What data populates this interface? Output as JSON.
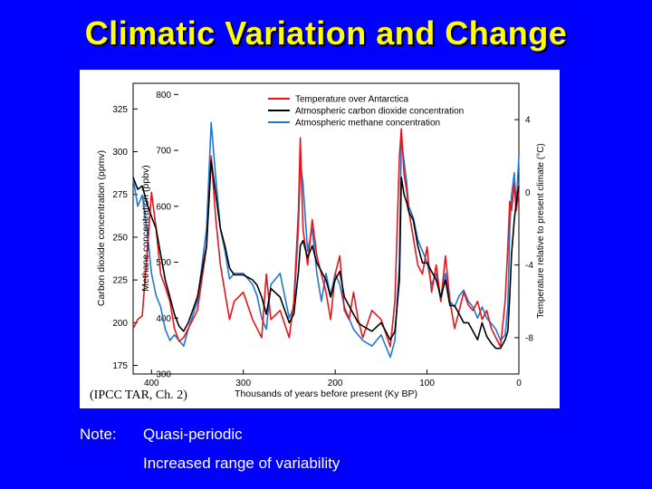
{
  "slide": {
    "title": "Climatic Variation and Change",
    "source": "(IPCC TAR, Ch. 2)",
    "note_label": "Note:",
    "note_lines": [
      "Quasi-periodic",
      "Increased range of variability"
    ]
  },
  "colors": {
    "background": "#0000ff",
    "title": "#ffff00",
    "temperature": "#e8141c",
    "co2": "#000000",
    "methane": "#1f78d1"
  },
  "chart_data": {
    "type": "line",
    "title": "",
    "xlabel": "Thousands of years before present (Ky BP)",
    "x_ticks": [
      400,
      300,
      200,
      100,
      0
    ],
    "xlim": [
      420,
      0
    ],
    "axes": {
      "co2": {
        "label": "Carbon dioxide concentration (ppmv)",
        "ticks": [
          175,
          200,
          225,
          250,
          275,
          300,
          325
        ],
        "lim": [
          170,
          340
        ]
      },
      "methane": {
        "label": "Methane concentration (ppbv)",
        "ticks": [
          300,
          400,
          500,
          600,
          700,
          800
        ],
        "lim": [
          300,
          820
        ]
      },
      "temperature": {
        "label": "Temperature relative to present climate (°C)",
        "ticks": [
          4,
          0,
          -4,
          -8
        ],
        "tick_labels": [
          "4",
          "0",
          "-4",
          "-8"
        ],
        "lim": [
          -10,
          6
        ]
      }
    },
    "legend": {
      "placement": "top-right",
      "entries": [
        "Temperature over Antarctica",
        "Atmospheric carbon dioxide concentration",
        "Atmospheric methane concentration"
      ]
    },
    "series": [
      {
        "name": "Temperature over Antarctica",
        "axis": "temperature",
        "x": [
          420,
          415,
          410,
          405,
          400,
          395,
          390,
          385,
          380,
          375,
          370,
          365,
          360,
          350,
          340,
          335,
          330,
          325,
          320,
          315,
          310,
          300,
          290,
          285,
          280,
          275,
          270,
          260,
          250,
          245,
          240,
          238,
          235,
          230,
          225,
          220,
          215,
          210,
          205,
          200,
          195,
          190,
          185,
          180,
          175,
          170,
          160,
          150,
          140,
          135,
          130,
          128,
          125,
          122,
          120,
          115,
          110,
          105,
          100,
          95,
          90,
          85,
          80,
          75,
          70,
          65,
          60,
          55,
          50,
          45,
          40,
          35,
          30,
          25,
          20,
          15,
          12,
          10,
          8,
          5,
          3,
          0
        ],
        "values": [
          -7.5,
          -7,
          -6.8,
          -3.5,
          0,
          -2,
          -4.5,
          -5.2,
          -6,
          -7.5,
          -8.2,
          -8,
          -7.5,
          -6.5,
          -3,
          2,
          -1.5,
          -4,
          -5.5,
          -7,
          -6,
          -5.5,
          -7,
          -7.5,
          -8,
          -4.5,
          -7,
          -6.5,
          -8,
          -6,
          -1,
          3,
          -2,
          -4,
          -1.5,
          -3.5,
          -4.5,
          -5.5,
          -7,
          -4.5,
          -3.5,
          -6.5,
          -7,
          -5.5,
          -7,
          -8,
          -6.5,
          -7,
          -8.5,
          -6,
          2,
          3.5,
          1,
          0,
          -1,
          -2.5,
          -4,
          -4.5,
          -3,
          -5.5,
          -4,
          -6,
          -3.5,
          -6,
          -7.5,
          -6.5,
          -5.5,
          -6.2,
          -6.5,
          -6,
          -7,
          -6.5,
          -7.5,
          -8,
          -8.5,
          -6,
          -3,
          -0.5,
          -1,
          0.5,
          -1,
          0
        ]
      },
      {
        "name": "Atmospheric carbon dioxide concentration",
        "axis": "co2",
        "x": [
          420,
          415,
          410,
          405,
          400,
          395,
          390,
          385,
          380,
          375,
          370,
          365,
          360,
          350,
          340,
          335,
          330,
          325,
          320,
          315,
          310,
          300,
          290,
          285,
          280,
          275,
          270,
          260,
          250,
          245,
          240,
          238,
          235,
          230,
          225,
          220,
          215,
          210,
          205,
          200,
          195,
          190,
          185,
          180,
          175,
          170,
          160,
          150,
          140,
          135,
          130,
          128,
          125,
          122,
          120,
          115,
          110,
          105,
          100,
          95,
          90,
          85,
          80,
          75,
          70,
          65,
          60,
          55,
          50,
          45,
          40,
          35,
          30,
          25,
          20,
          15,
          12,
          10,
          8,
          5,
          3,
          0
        ],
        "values": [
          285,
          278,
          280,
          270,
          262,
          255,
          240,
          225,
          215,
          205,
          198,
          195,
          200,
          215,
          245,
          295,
          275,
          255,
          245,
          232,
          228,
          228,
          225,
          222,
          215,
          205,
          220,
          215,
          200,
          205,
          230,
          245,
          248,
          238,
          245,
          235,
          230,
          225,
          215,
          225,
          230,
          215,
          210,
          205,
          200,
          198,
          195,
          200,
          190,
          195,
          225,
          285,
          275,
          270,
          265,
          260,
          245,
          235,
          235,
          230,
          225,
          215,
          225,
          210,
          210,
          205,
          200,
          200,
          195,
          190,
          200,
          192,
          188,
          185,
          185,
          190,
          195,
          215,
          240,
          260,
          270,
          280
        ]
      },
      {
        "name": "Atmospheric methane concentration",
        "axis": "methane",
        "x": [
          420,
          415,
          410,
          405,
          400,
          395,
          390,
          385,
          380,
          375,
          370,
          365,
          360,
          350,
          340,
          335,
          330,
          325,
          320,
          315,
          310,
          300,
          290,
          285,
          280,
          275,
          270,
          260,
          250,
          245,
          240,
          238,
          235,
          230,
          225,
          220,
          215,
          210,
          205,
          200,
          195,
          190,
          185,
          180,
          175,
          170,
          160,
          150,
          140,
          135,
          130,
          128,
          125,
          122,
          120,
          115,
          110,
          105,
          100,
          95,
          90,
          85,
          80,
          75,
          70,
          65,
          60,
          55,
          50,
          45,
          40,
          35,
          30,
          25,
          20,
          15,
          12,
          10,
          8,
          5,
          3,
          0
        ],
        "values": [
          650,
          600,
          620,
          560,
          480,
          440,
          420,
          380,
          360,
          370,
          360,
          350,
          380,
          430,
          560,
          750,
          650,
          560,
          520,
          470,
          480,
          480,
          460,
          440,
          400,
          380,
          460,
          480,
          400,
          420,
          560,
          680,
          640,
          520,
          560,
          480,
          430,
          480,
          440,
          480,
          460,
          420,
          400,
          380,
          370,
          360,
          350,
          370,
          330,
          360,
          500,
          720,
          680,
          640,
          600,
          580,
          540,
          520,
          500,
          460,
          480,
          430,
          480,
          430,
          420,
          440,
          450,
          430,
          420,
          400,
          420,
          400,
          390,
          380,
          360,
          370,
          420,
          560,
          620,
          660,
          600,
          690
        ]
      }
    ]
  }
}
